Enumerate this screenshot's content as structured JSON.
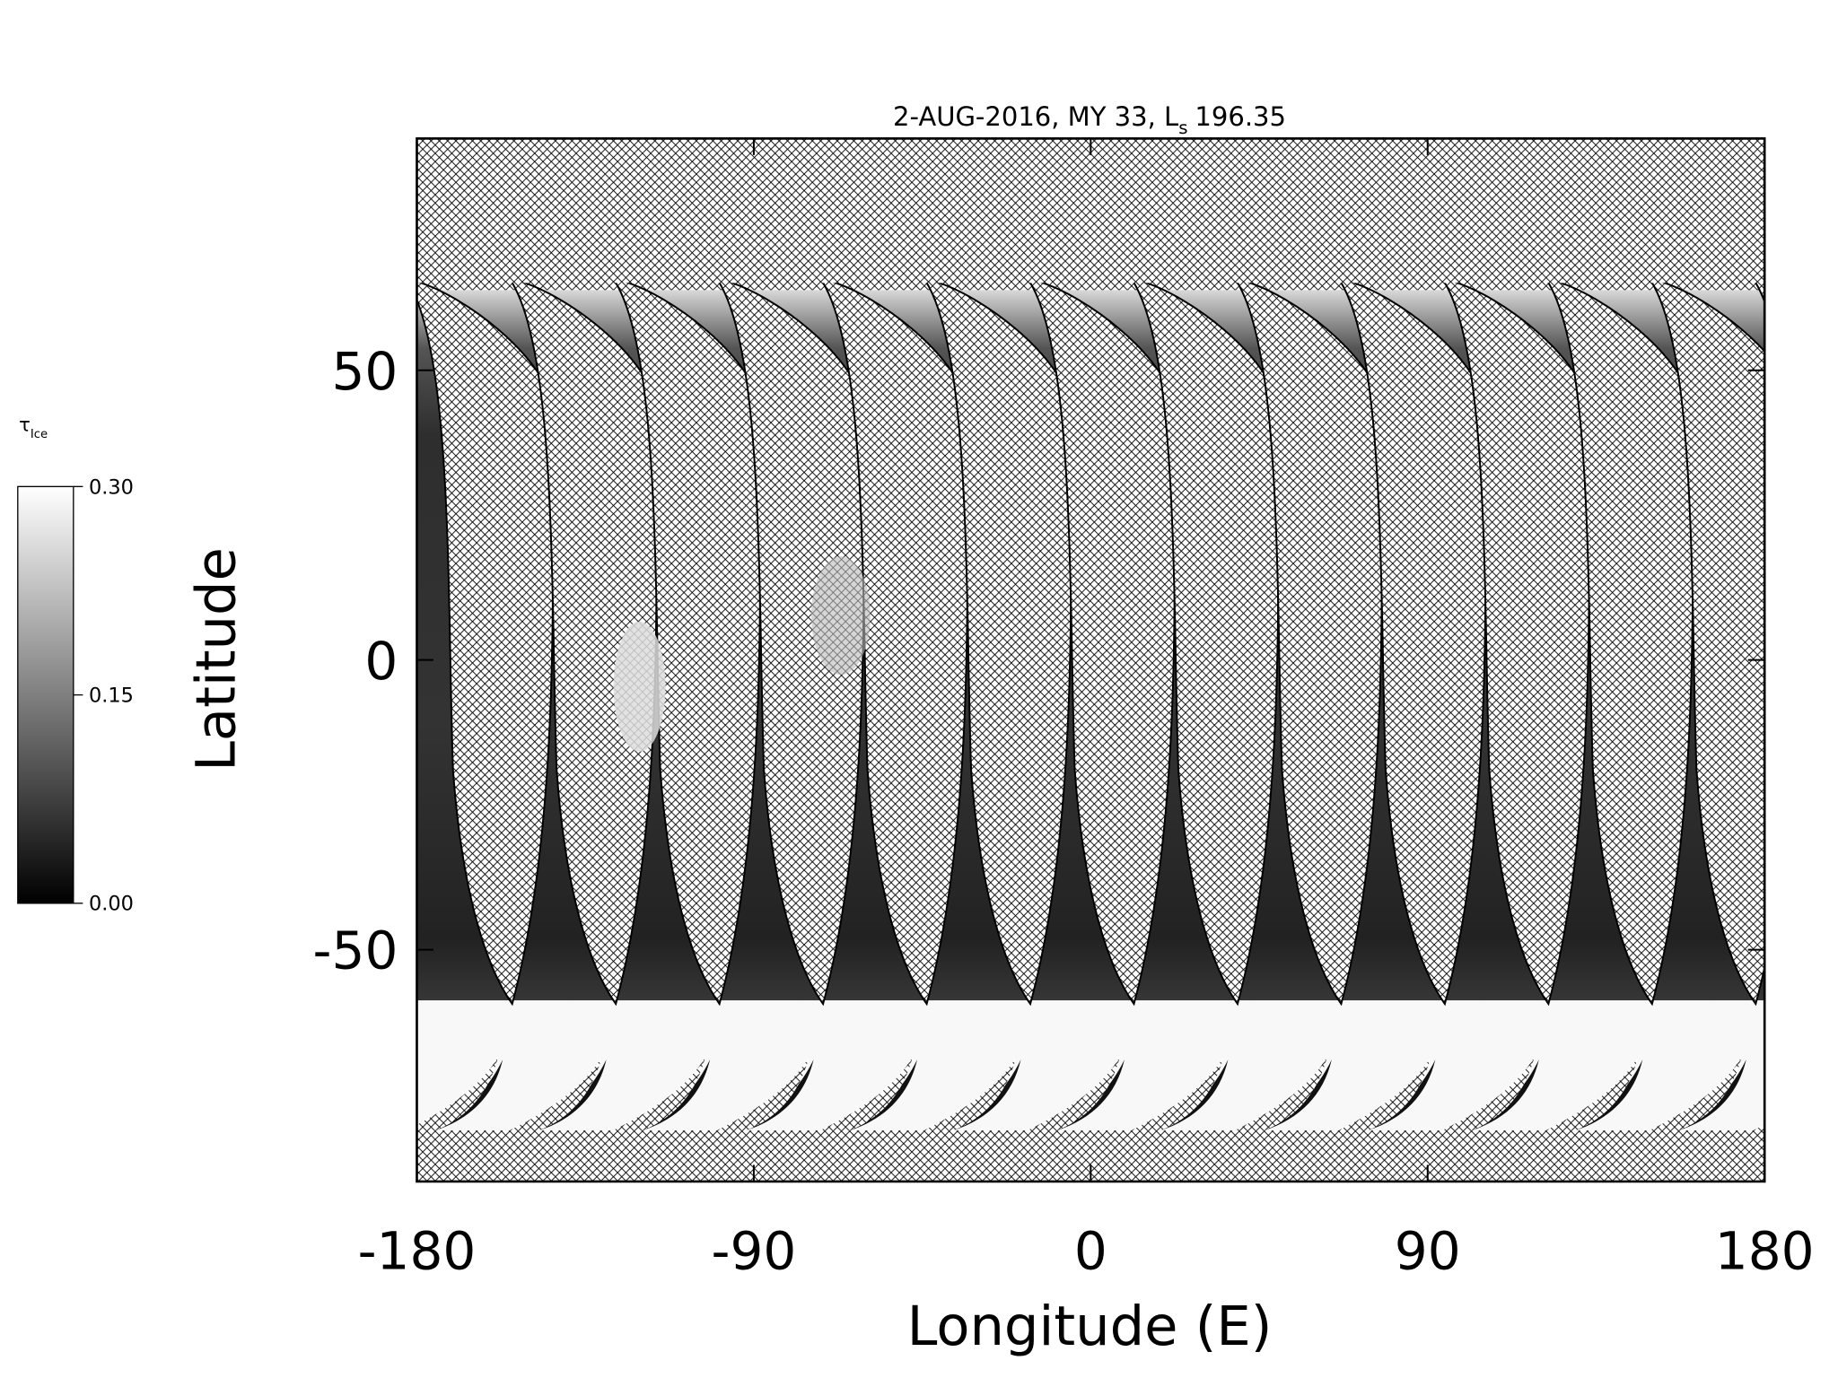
{
  "chart_data": {
    "type": "map",
    "title": {
      "text": "2-AUG-2016, MY 33,  L",
      "sub": "s",
      "tail": "196.35"
    },
    "xlabel": "Longitude (E)",
    "ylabel": "Latitude",
    "xlim": [
      -180,
      180
    ],
    "xticks": [
      -180,
      -90,
      0,
      90,
      180
    ],
    "ylim": [
      -90,
      90
    ],
    "yticks": [
      -50,
      0,
      50
    ],
    "colorbar": {
      "symbol": "τ",
      "sub": "Ice",
      "lim": [
        0,
        0.3
      ],
      "ticks": [
        {
          "value": 0,
          "label": "0.00"
        },
        {
          "value": 0.15,
          "label": "0.15"
        },
        {
          "value": 0.3,
          "label": "0.30"
        }
      ]
    }
  }
}
